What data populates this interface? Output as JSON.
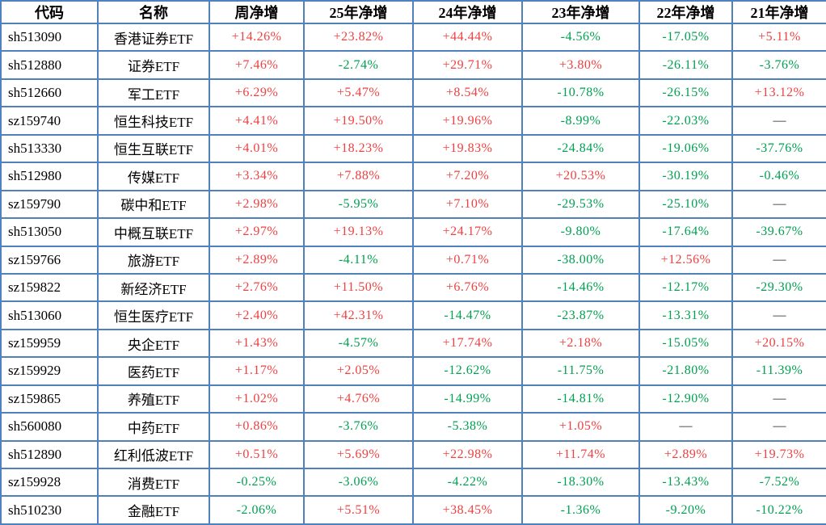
{
  "colors": {
    "border": "#4f81bd",
    "positive": "#f04040",
    "negative": "#00a050",
    "dash": "#1a1a1a"
  },
  "chart_data": {
    "type": "table",
    "title": "",
    "columns": [
      "代码",
      "名称",
      "周净增",
      "25年净增",
      "24年净增",
      "23年净增",
      "22年净增",
      "21年净增"
    ],
    "rows": [
      [
        "sh513090",
        "香港证券ETF",
        "+14.26%",
        "+23.82%",
        "+44.44%",
        "-4.56%",
        "-17.05%",
        "+5.11%"
      ],
      [
        "sh512880",
        "证券ETF",
        "+7.46%",
        "-2.74%",
        "+29.71%",
        "+3.80%",
        "-26.11%",
        "-3.76%"
      ],
      [
        "sh512660",
        "军工ETF",
        "+6.29%",
        "+5.47%",
        "+8.54%",
        "-10.78%",
        "-26.15%",
        "+13.12%"
      ],
      [
        "sz159740",
        "恒生科技ETF",
        "+4.41%",
        "+19.50%",
        "+19.96%",
        "-8.99%",
        "-22.03%",
        "—"
      ],
      [
        "sh513330",
        "恒生互联ETF",
        "+4.01%",
        "+18.23%",
        "+19.83%",
        "-24.84%",
        "-19.06%",
        "-37.76%"
      ],
      [
        "sh512980",
        "传媒ETF",
        "+3.34%",
        "+7.88%",
        "+7.20%",
        "+20.53%",
        "-30.19%",
        "-0.46%"
      ],
      [
        "sz159790",
        "碳中和ETF",
        "+2.98%",
        "-5.95%",
        "+7.10%",
        "-29.53%",
        "-25.10%",
        "—"
      ],
      [
        "sh513050",
        "中概互联ETF",
        "+2.97%",
        "+19.13%",
        "+24.17%",
        "-9.80%",
        "-17.64%",
        "-39.67%"
      ],
      [
        "sz159766",
        "旅游ETF",
        "+2.89%",
        "-4.11%",
        "+0.71%",
        "-38.00%",
        "+12.56%",
        "—"
      ],
      [
        "sz159822",
        "新经济ETF",
        "+2.76%",
        "+11.50%",
        "+6.76%",
        "-14.46%",
        "-12.17%",
        "-29.30%"
      ],
      [
        "sh513060",
        "恒生医疗ETF",
        "+2.40%",
        "+42.31%",
        "-14.47%",
        "-23.87%",
        "-13.31%",
        "—"
      ],
      [
        "sz159959",
        "央企ETF",
        "+1.43%",
        "-4.57%",
        "+17.74%",
        "+2.18%",
        "-15.05%",
        "+20.15%"
      ],
      [
        "sz159929",
        "医药ETF",
        "+1.17%",
        "+2.05%",
        "-12.62%",
        "-11.75%",
        "-21.80%",
        "-11.39%"
      ],
      [
        "sz159865",
        "养殖ETF",
        "+1.02%",
        "+4.76%",
        "-14.99%",
        "-14.81%",
        "-12.90%",
        "—"
      ],
      [
        "sh560080",
        "中药ETF",
        "+0.86%",
        "-3.76%",
        "-5.38%",
        "+1.05%",
        "—",
        "—"
      ],
      [
        "sh512890",
        "红利低波ETF",
        "+0.51%",
        "+5.69%",
        "+22.98%",
        "+11.74%",
        "+2.89%",
        "+19.73%"
      ],
      [
        "sz159928",
        "消费ETF",
        "-0.25%",
        "-3.06%",
        "-4.22%",
        "-18.30%",
        "-13.43%",
        "-7.52%"
      ],
      [
        "sh510230",
        "金融ETF",
        "-2.06%",
        "+5.51%",
        "+38.45%",
        "-1.36%",
        "-9.20%",
        "-10.22%"
      ]
    ]
  }
}
